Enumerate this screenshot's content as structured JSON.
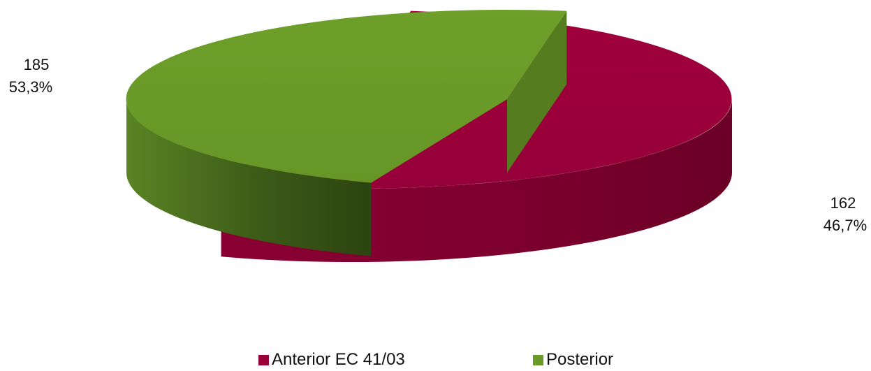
{
  "chart_data": {
    "type": "pie",
    "title": "",
    "three_d": true,
    "exploded": true,
    "legend_position": "bottom",
    "slices": [
      {
        "name": "Anterior EC 41/03",
        "value": 185,
        "percent_label": "53,3%",
        "color": "#9a0038",
        "side_color": "#7a002c",
        "inner_color": "#740028"
      },
      {
        "name": "Posterior",
        "value": 162,
        "percent_label": "46,7%",
        "color": "#6a9a28",
        "side_color": "#43641a",
        "inner_color": "#557c1f"
      }
    ]
  }
}
